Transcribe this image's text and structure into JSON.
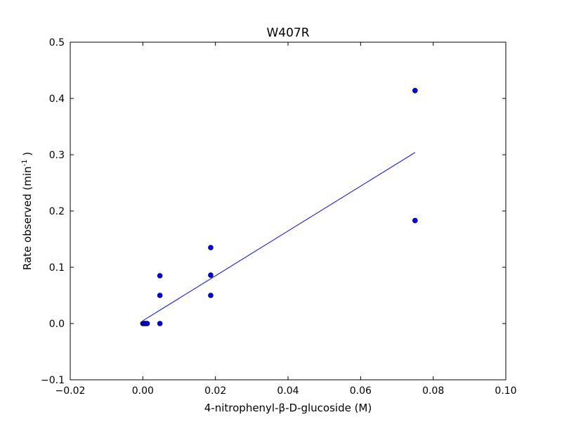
{
  "chart_data": {
    "type": "scatter",
    "title": "W407R",
    "xlabel": "4-nitrophenyl-β-D-glucoside (M)",
    "ylabel": {
      "main": "Rate observed (min",
      "superscript": "-1",
      "close": " )"
    },
    "xlim": [
      -0.02,
      0.1
    ],
    "ylim": [
      -0.1,
      0.5
    ],
    "xticks": [
      {
        "value": -0.02,
        "label": "−0.02"
      },
      {
        "value": 0.0,
        "label": "0.00"
      },
      {
        "value": 0.02,
        "label": "0.02"
      },
      {
        "value": 0.04,
        "label": "0.04"
      },
      {
        "value": 0.06,
        "label": "0.06"
      },
      {
        "value": 0.08,
        "label": "0.08"
      },
      {
        "value": 0.1,
        "label": "0.10"
      }
    ],
    "yticks": [
      {
        "value": -0.1,
        "label": "−0.1"
      },
      {
        "value": 0.0,
        "label": "0.0"
      },
      {
        "value": 0.1,
        "label": "0.1"
      },
      {
        "value": 0.2,
        "label": "0.2"
      },
      {
        "value": 0.3,
        "label": "0.3"
      },
      {
        "value": 0.4,
        "label": "0.4"
      },
      {
        "value": 0.5,
        "label": "0.5"
      }
    ],
    "grid": false,
    "series": [
      {
        "kind": "scatter",
        "color": "#0000ff",
        "edge_color": "#000000",
        "points": [
          {
            "x": 0.0,
            "y": 0.0
          },
          {
            "x": 0.0003,
            "y": 0.0
          },
          {
            "x": 0.0006,
            "y": 0.0
          },
          {
            "x": 0.0009,
            "y": 0.0
          },
          {
            "x": 0.0012,
            "y": 0.0
          },
          {
            "x": 0.0047,
            "y": 0.0
          },
          {
            "x": 0.0047,
            "y": 0.05
          },
          {
            "x": 0.0047,
            "y": 0.085
          },
          {
            "x": 0.0187,
            "y": 0.05
          },
          {
            "x": 0.0187,
            "y": 0.086
          },
          {
            "x": 0.0187,
            "y": 0.135
          },
          {
            "x": 0.075,
            "y": 0.183
          },
          {
            "x": 0.075,
            "y": 0.414
          }
        ]
      },
      {
        "kind": "line",
        "color": "#0000ff",
        "points": [
          {
            "x": 0.0,
            "y": 0.005
          },
          {
            "x": 0.075,
            "y": 0.304
          }
        ]
      }
    ]
  }
}
